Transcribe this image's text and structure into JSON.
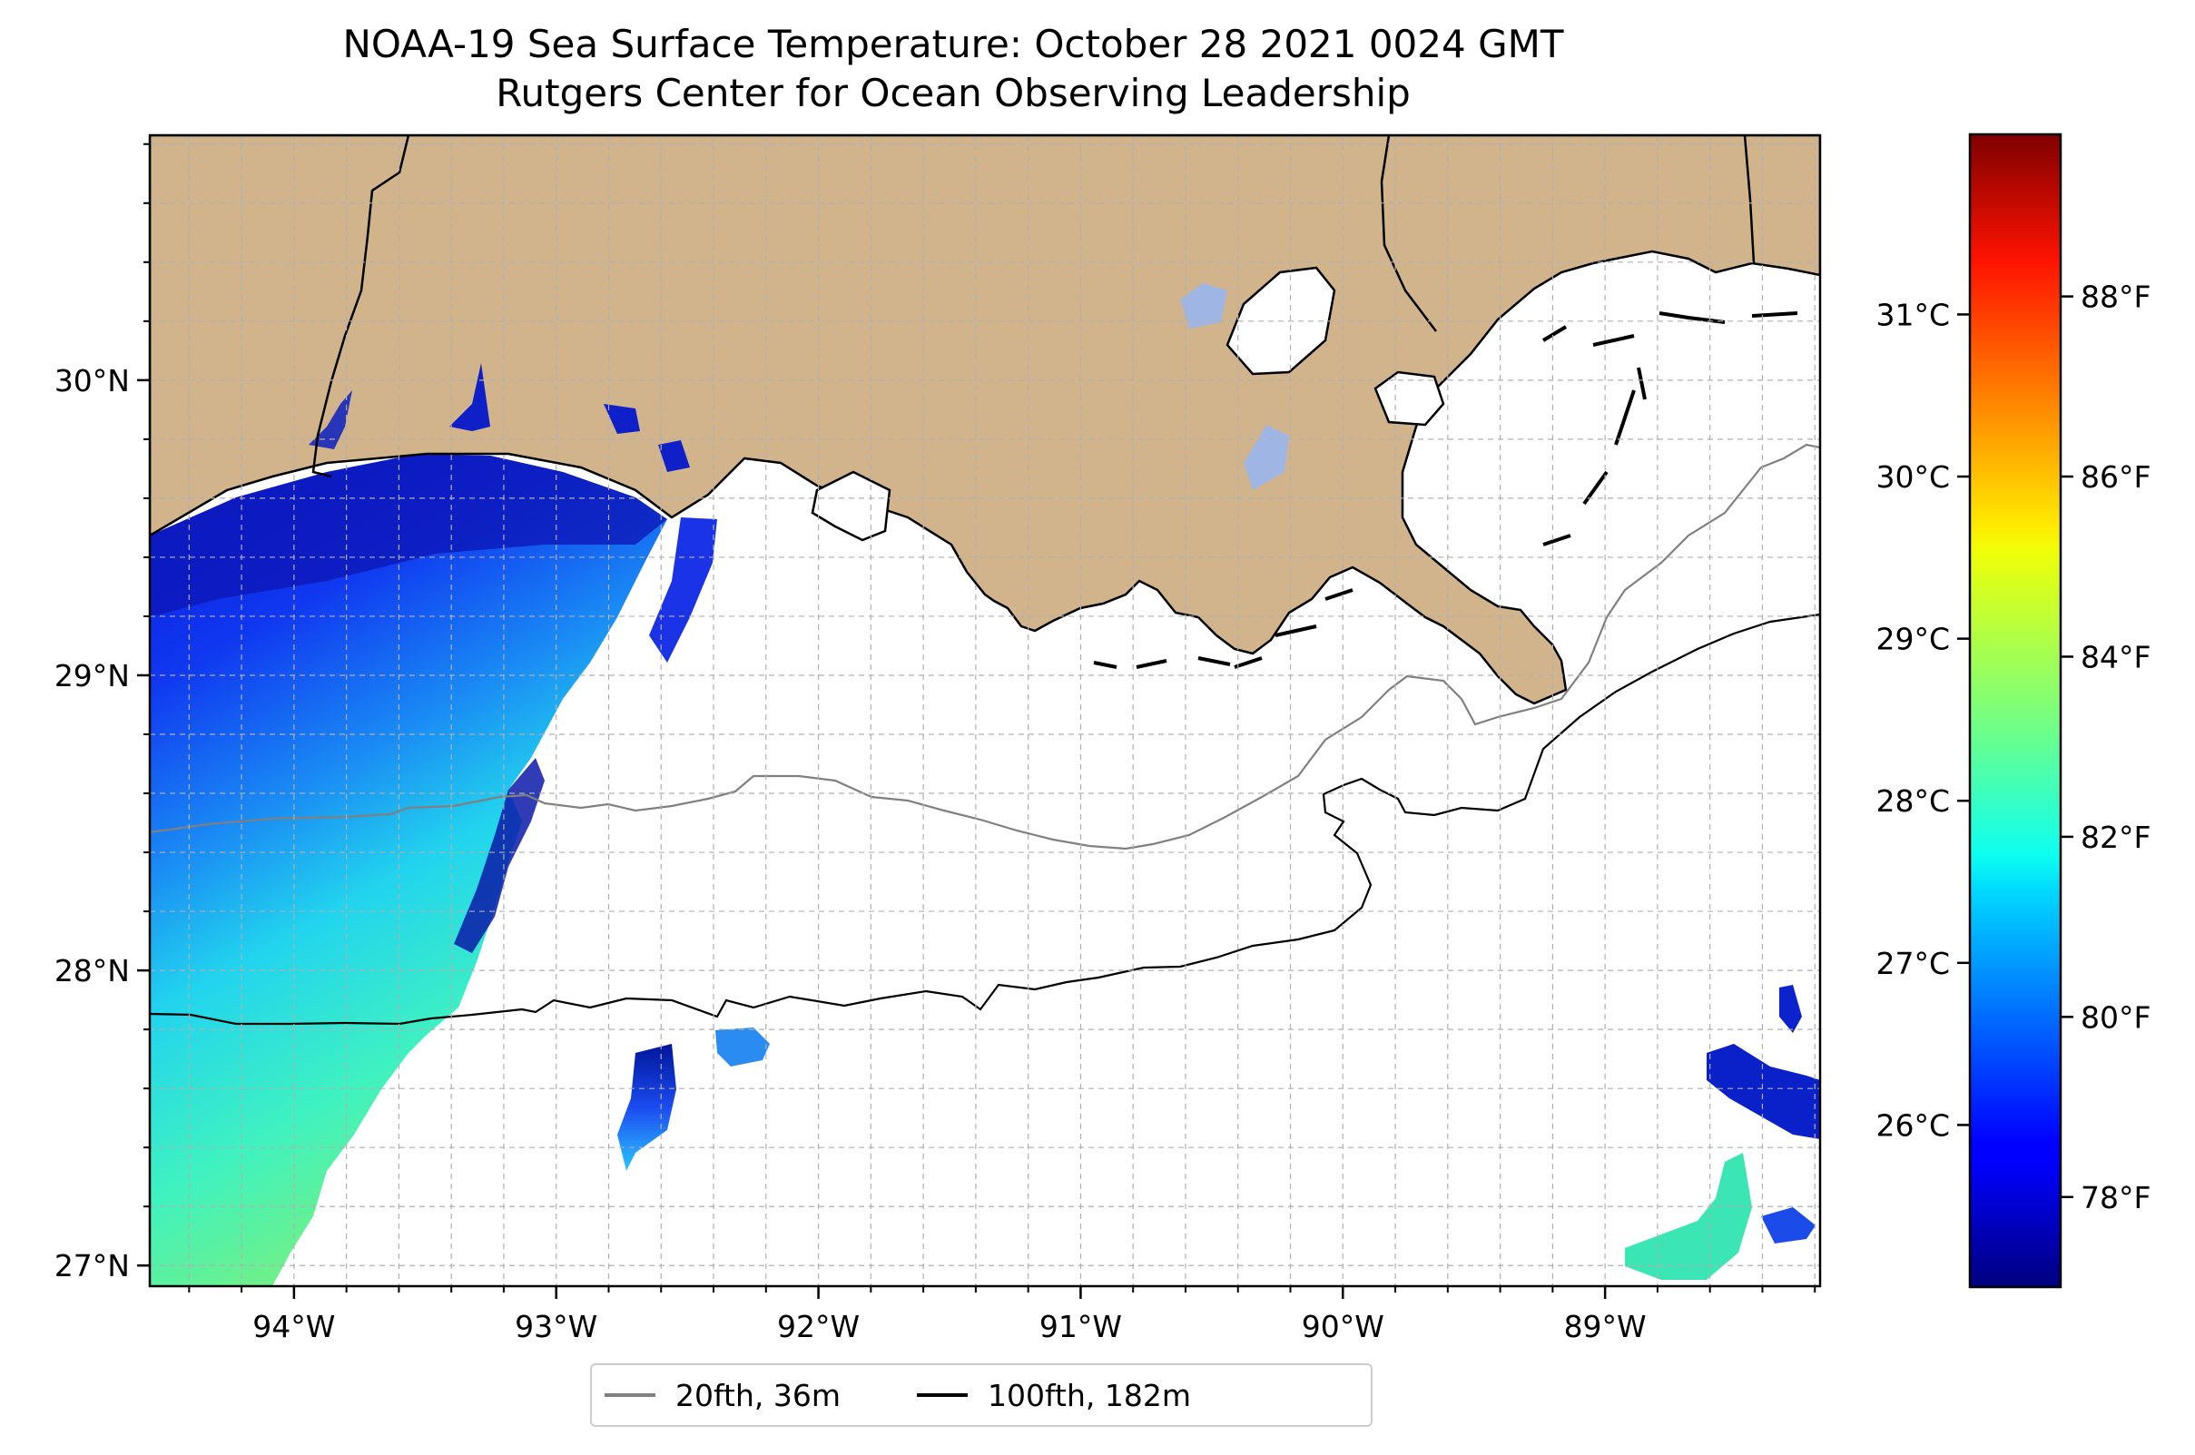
{
  "title": {
    "line1": "NOAA-19 Sea Surface Temperature: October 28 2021 0024 GMT",
    "line2": "Rutgers Center for Ocean Observing Leadership"
  },
  "map": {
    "lon_range": [
      -94.55,
      -88.18
    ],
    "lat_range": [
      26.93,
      30.83
    ],
    "grid": true,
    "land_color": "#d2b48c",
    "lon_ticks": [
      {
        "value": -94,
        "label": "94°W"
      },
      {
        "value": -93,
        "label": "93°W"
      },
      {
        "value": -92,
        "label": "92°W"
      },
      {
        "value": -91,
        "label": "91°W"
      },
      {
        "value": -90,
        "label": "90°W"
      },
      {
        "value": -89,
        "label": "89°W"
      }
    ],
    "lat_ticks": [
      {
        "value": 30,
        "label": "30°N"
      },
      {
        "value": 29,
        "label": "29°N"
      },
      {
        "value": 28,
        "label": "28°N"
      },
      {
        "value": 27,
        "label": "27°N"
      }
    ]
  },
  "colorbar": {
    "colormap": "jet",
    "range_f": [
      77.0,
      89.8
    ],
    "celsius_ticks": [
      {
        "value": 31,
        "label": "31°C"
      },
      {
        "value": 30,
        "label": "30°C"
      },
      {
        "value": 29,
        "label": "29°C"
      },
      {
        "value": 28,
        "label": "28°C"
      },
      {
        "value": 27,
        "label": "27°C"
      },
      {
        "value": 26,
        "label": "26°C"
      }
    ],
    "fahrenheit_ticks": [
      {
        "value": 88,
        "label": "88°F"
      },
      {
        "value": 86,
        "label": "86°F"
      },
      {
        "value": 84,
        "label": "84°F"
      },
      {
        "value": 82,
        "label": "82°F"
      },
      {
        "value": 80,
        "label": "80°F"
      },
      {
        "value": 78,
        "label": "78°F"
      }
    ]
  },
  "legend": {
    "items": [
      {
        "label": "20fth, 36m",
        "color": "#808080"
      },
      {
        "label": "100fth, 182m",
        "color": "#000000"
      }
    ]
  }
}
